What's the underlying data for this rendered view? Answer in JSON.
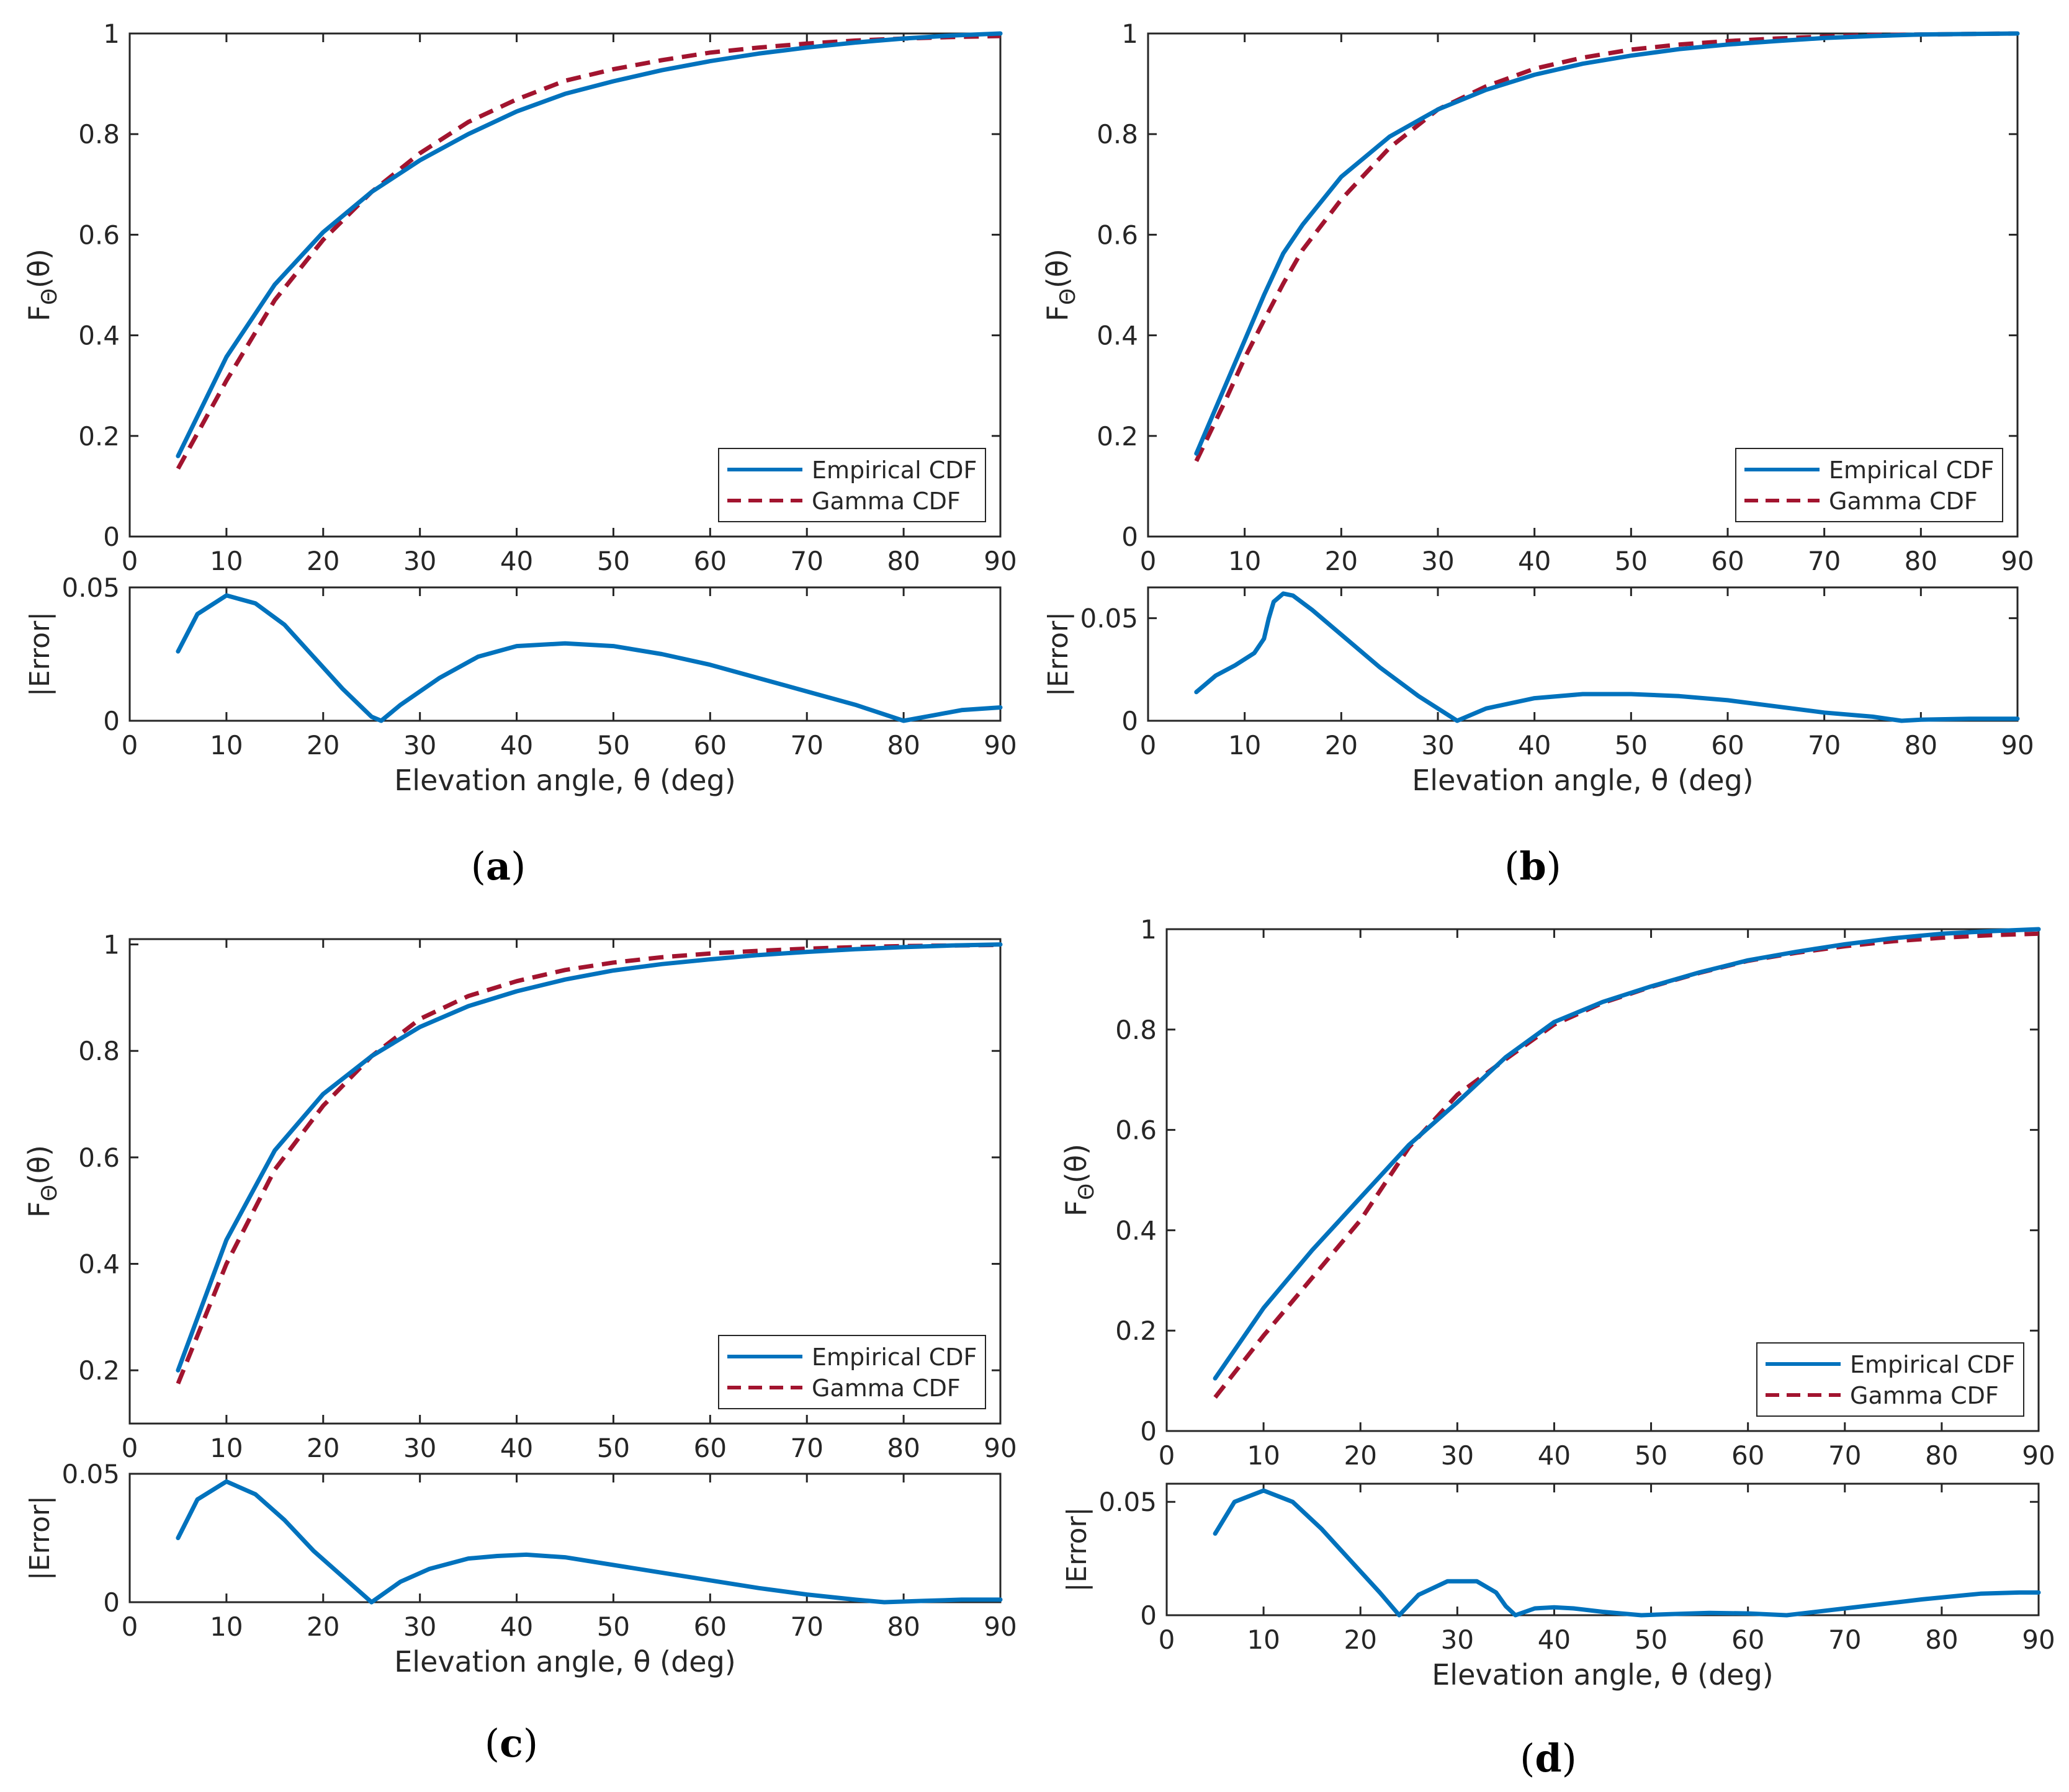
{
  "figure": {
    "panels": [
      {
        "caption_letter": "a",
        "main": {
          "ylabel": "F_Θ(θ)",
          "xlim": [
            0,
            90
          ],
          "ylim": [
            0,
            1
          ],
          "xticks": [
            0,
            10,
            20,
            30,
            40,
            50,
            60,
            70,
            80,
            90
          ],
          "yticks": [
            0,
            0.2,
            0.4,
            0.6,
            0.8,
            1
          ],
          "ytick_labels": [
            "0",
            "0.2",
            "0.4",
            "0.6",
            "0.8",
            "1"
          ],
          "legend": [
            "Empirical CDF",
            "Gamma CDF"
          ]
        },
        "error": {
          "ylabel": "|Error|",
          "xlabel": "Elevation angle, θ (deg)",
          "ylim": [
            0,
            0.05
          ],
          "yticks": [
            0,
            0.05
          ],
          "ytick_labels": [
            "0",
            "0.05"
          ]
        }
      },
      {
        "caption_letter": "b",
        "main": {
          "ylabel": "F_Θ(θ)",
          "xlim": [
            0,
            90
          ],
          "ylim": [
            0,
            1
          ],
          "xticks": [
            0,
            10,
            20,
            30,
            40,
            50,
            60,
            70,
            80,
            90
          ],
          "yticks": [
            0,
            0.2,
            0.4,
            0.6,
            0.8,
            1
          ],
          "ytick_labels": [
            "0",
            "0.2",
            "0.4",
            "0.6",
            "0.8",
            "1"
          ],
          "legend": [
            "Empirical CDF",
            "Gamma CDF"
          ]
        },
        "error": {
          "ylabel": "|Error|",
          "xlabel": "Elevation angle, θ (deg)",
          "ylim": [
            0,
            0.065
          ],
          "yticks": [
            0,
            0.05
          ],
          "ytick_labels": [
            "0",
            "0.05"
          ]
        }
      },
      {
        "caption_letter": "c",
        "main": {
          "ylabel": "F_Θ(θ)",
          "xlim": [
            0,
            90
          ],
          "ylim": [
            0.1,
            1.01
          ],
          "xticks": [
            0,
            10,
            20,
            30,
            40,
            50,
            60,
            70,
            80,
            90
          ],
          "yticks": [
            0.2,
            0.4,
            0.6,
            0.8,
            1
          ],
          "ytick_labels": [
            "0.2",
            "0.4",
            "0.6",
            "0.8",
            "1"
          ],
          "legend": [
            "Empirical CDF",
            "Gamma CDF"
          ]
        },
        "error": {
          "ylabel": "|Error|",
          "xlabel": "Elevation angle, θ (deg)",
          "ylim": [
            0,
            0.05
          ],
          "yticks": [
            0,
            0.05
          ],
          "ytick_labels": [
            "0",
            "0.05"
          ]
        }
      },
      {
        "caption_letter": "d",
        "main": {
          "ylabel": "F_Θ(θ)",
          "xlim": [
            0,
            90
          ],
          "ylim": [
            0,
            1
          ],
          "xticks": [
            0,
            10,
            20,
            30,
            40,
            50,
            60,
            70,
            80,
            90
          ],
          "yticks": [
            0,
            0.2,
            0.4,
            0.6,
            0.8,
            1
          ],
          "ytick_labels": [
            "0",
            "0.2",
            "0.4",
            "0.6",
            "0.8",
            "1"
          ],
          "legend": [
            "Empirical CDF",
            "Gamma CDF"
          ]
        },
        "error": {
          "ylabel": "|Error|",
          "xlabel": "Elevation angle, θ (deg)",
          "ylim": [
            0,
            0.058
          ],
          "yticks": [
            0,
            0.05
          ],
          "ytick_labels": [
            "0",
            "0.05"
          ]
        }
      }
    ]
  },
  "colors": {
    "empirical": "#0072BD",
    "gamma": "#A2142F",
    "axes": "#262626"
  },
  "chart_data": [
    {
      "type": "line",
      "panel": "a",
      "x": [
        5,
        10,
        15,
        20,
        25,
        30,
        35,
        40,
        45,
        50,
        55,
        60,
        65,
        70,
        75,
        80,
        85,
        90
      ],
      "series": [
        {
          "name": "Empirical CDF",
          "values": [
            0.16,
            0.357,
            0.501,
            0.605,
            0.685,
            0.748,
            0.8,
            0.845,
            0.88,
            0.905,
            0.927,
            0.945,
            0.96,
            0.972,
            0.982,
            0.99,
            0.996,
            1.0
          ]
        },
        {
          "name": "Gamma CDF",
          "values": [
            0.135,
            0.31,
            0.47,
            0.59,
            0.685,
            0.762,
            0.824,
            0.869,
            0.906,
            0.929,
            0.947,
            0.962,
            0.972,
            0.98,
            0.986,
            0.99,
            0.993,
            0.995
          ]
        }
      ],
      "error_x": [
        5,
        7,
        10,
        13,
        16,
        19,
        22,
        25,
        26,
        28,
        32,
        36,
        40,
        45,
        50,
        55,
        60,
        65,
        70,
        75,
        80,
        83,
        86,
        90
      ],
      "error_values": [
        0.026,
        0.04,
        0.047,
        0.044,
        0.036,
        0.024,
        0.012,
        0.0015,
        0.0,
        0.006,
        0.016,
        0.024,
        0.028,
        0.029,
        0.028,
        0.025,
        0.021,
        0.016,
        0.011,
        0.006,
        0.0,
        0.002,
        0.004,
        0.005
      ]
    },
    {
      "type": "line",
      "panel": "b",
      "x": [
        5,
        8,
        10,
        12,
        14,
        16,
        20,
        25,
        30,
        35,
        40,
        45,
        50,
        55,
        60,
        65,
        70,
        75,
        80,
        85,
        90
      ],
      "series": [
        {
          "name": "Empirical CDF",
          "values": [
            0.165,
            0.3,
            0.39,
            0.48,
            0.563,
            0.62,
            0.715,
            0.795,
            0.849,
            0.888,
            0.918,
            0.94,
            0.956,
            0.969,
            0.978,
            0.985,
            0.991,
            0.995,
            0.998,
            0.999,
            1.0
          ]
        },
        {
          "name": "Gamma CDF",
          "values": [
            0.15,
            0.27,
            0.355,
            0.43,
            0.503,
            0.57,
            0.67,
            0.773,
            0.849,
            0.895,
            0.93,
            0.952,
            0.968,
            0.978,
            0.985,
            0.99,
            0.994,
            0.997,
            0.998,
            0.999,
            1.0
          ]
        }
      ],
      "error_x": [
        5,
        7,
        9,
        11,
        12,
        12.5,
        13,
        14,
        15,
        17,
        20,
        24,
        28,
        32,
        35,
        40,
        45,
        50,
        55,
        60,
        65,
        70,
        75,
        78,
        80,
        85,
        90
      ],
      "error_values": [
        0.014,
        0.022,
        0.027,
        0.033,
        0.04,
        0.05,
        0.058,
        0.062,
        0.061,
        0.054,
        0.042,
        0.026,
        0.012,
        0.0,
        0.006,
        0.011,
        0.013,
        0.013,
        0.012,
        0.01,
        0.007,
        0.004,
        0.002,
        0.0,
        0.0005,
        0.001,
        0.001
      ]
    },
    {
      "type": "line",
      "panel": "c",
      "x": [
        5,
        10,
        15,
        20,
        25,
        30,
        35,
        40,
        45,
        50,
        55,
        60,
        65,
        70,
        75,
        80,
        85,
        90
      ],
      "series": [
        {
          "name": "Empirical CDF",
          "values": [
            0.2,
            0.445,
            0.613,
            0.719,
            0.79,
            0.845,
            0.884,
            0.912,
            0.934,
            0.951,
            0.963,
            0.972,
            0.98,
            0.986,
            0.991,
            0.995,
            0.998,
            1.0
          ]
        },
        {
          "name": "Gamma CDF",
          "values": [
            0.175,
            0.4,
            0.577,
            0.697,
            0.79,
            0.86,
            0.903,
            0.931,
            0.952,
            0.966,
            0.976,
            0.983,
            0.988,
            0.992,
            0.995,
            0.997,
            0.998,
            0.999
          ]
        }
      ],
      "error_x": [
        5,
        7,
        10,
        13,
        16,
        19,
        22,
        25,
        28,
        31,
        35,
        38,
        41,
        45,
        50,
        55,
        60,
        65,
        70,
        75,
        78,
        82,
        86,
        90
      ],
      "error_values": [
        0.025,
        0.04,
        0.047,
        0.042,
        0.032,
        0.02,
        0.01,
        0.0,
        0.008,
        0.013,
        0.017,
        0.018,
        0.0185,
        0.0175,
        0.0145,
        0.0115,
        0.0085,
        0.0055,
        0.003,
        0.001,
        0.0,
        0.0005,
        0.001,
        0.001
      ]
    },
    {
      "type": "line",
      "panel": "d",
      "x": [
        5,
        10,
        15,
        20,
        25,
        30,
        35,
        40,
        45,
        50,
        55,
        60,
        65,
        70,
        75,
        80,
        85,
        90
      ],
      "series": [
        {
          "name": "Empirical CDF",
          "values": [
            0.105,
            0.245,
            0.36,
            0.465,
            0.57,
            0.655,
            0.745,
            0.815,
            0.855,
            0.886,
            0.914,
            0.938,
            0.955,
            0.97,
            0.982,
            0.991,
            0.996,
            1.0
          ]
        },
        {
          "name": "Gamma CDF",
          "values": [
            0.067,
            0.19,
            0.305,
            0.42,
            0.565,
            0.67,
            0.741,
            0.81,
            0.853,
            0.885,
            0.913,
            0.937,
            0.953,
            0.966,
            0.976,
            0.983,
            0.988,
            0.991
          ]
        }
      ],
      "error_x": [
        5,
        7,
        10,
        13,
        16,
        19,
        22,
        24,
        26,
        29,
        32,
        34,
        35,
        36,
        38,
        40,
        42,
        45,
        49,
        52,
        56,
        60,
        64,
        68,
        72,
        78,
        84,
        88,
        90
      ],
      "error_values": [
        0.036,
        0.05,
        0.055,
        0.05,
        0.038,
        0.024,
        0.01,
        0.0,
        0.009,
        0.015,
        0.015,
        0.01,
        0.004,
        0.0,
        0.003,
        0.0035,
        0.003,
        0.0015,
        0.0,
        0.0005,
        0.001,
        0.0008,
        0.0,
        0.002,
        0.004,
        0.007,
        0.0095,
        0.01,
        0.01
      ]
    }
  ]
}
